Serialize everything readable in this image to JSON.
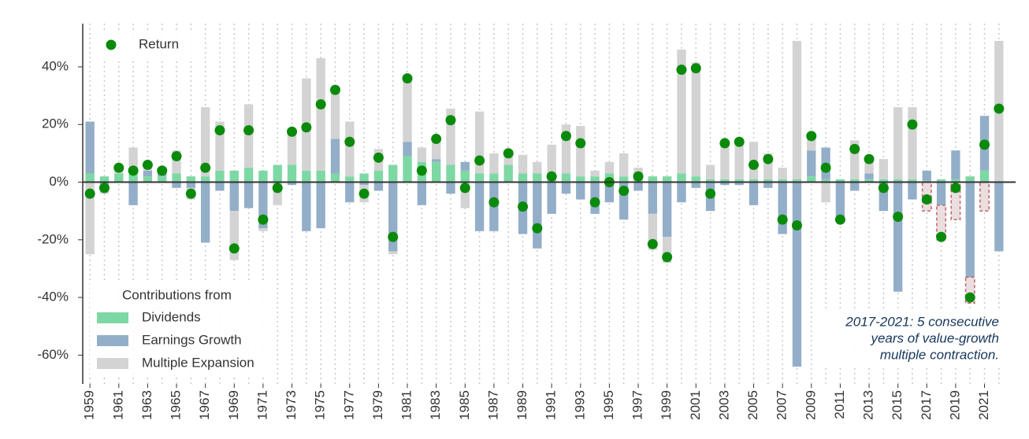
{
  "chart_data": {
    "type": "bar",
    "legend_title": "Contributions from",
    "annotation": [
      "2017-2021: 5 consecutive",
      "years of value-growth",
      "multiple contraction."
    ],
    "x": [
      1959,
      1960,
      1961,
      1962,
      1963,
      1964,
      1965,
      1966,
      1967,
      1968,
      1969,
      1970,
      1971,
      1972,
      1973,
      1974,
      1975,
      1976,
      1977,
      1978,
      1979,
      1980,
      1981,
      1982,
      1983,
      1984,
      1985,
      1986,
      1987,
      1988,
      1989,
      1990,
      1991,
      1992,
      1993,
      1994,
      1995,
      1996,
      1997,
      1998,
      1999,
      2000,
      2001,
      2002,
      2003,
      2004,
      2005,
      2006,
      2007,
      2008,
      2009,
      2010,
      2011,
      2012,
      2013,
      2014,
      2015,
      2016,
      2017,
      2018,
      2019,
      2020,
      2021,
      2022
    ],
    "xlim": [
      1958.5,
      2022.5
    ],
    "xticks": [
      1959,
      1961,
      1963,
      1965,
      1967,
      1969,
      1971,
      1973,
      1975,
      1977,
      1979,
      1981,
      1983,
      1985,
      1987,
      1989,
      1991,
      1993,
      1995,
      1997,
      1999,
      2001,
      2003,
      2005,
      2007,
      2009,
      2011,
      2013,
      2015,
      2017,
      2019,
      2021
    ],
    "ylim": [
      -70,
      55
    ],
    "yticks": [
      {
        "value": -60,
        "label": "-60%"
      },
      {
        "value": -40,
        "label": "-40%"
      },
      {
        "value": -20,
        "label": "-20%"
      },
      {
        "value": 0,
        "label": "0%"
      },
      {
        "value": 20,
        "label": "20%"
      },
      {
        "value": 40,
        "label": "40%"
      }
    ],
    "grid": true,
    "series": [
      {
        "name": "Dividends",
        "color": "#7dd8a4",
        "values": [
          3,
          2,
          3,
          3,
          2,
          2,
          3,
          2,
          2,
          4,
          4,
          5,
          4,
          6,
          6,
          4,
          4,
          3,
          2,
          3,
          4,
          6,
          9,
          7,
          7,
          6,
          4,
          3,
          3,
          6,
          3,
          3,
          2,
          3,
          2,
          2,
          3,
          2,
          1,
          2,
          2,
          3,
          2,
          1,
          1,
          1,
          1,
          1,
          1,
          1,
          2,
          1,
          1,
          1,
          1,
          1,
          1,
          1,
          0.5,
          1,
          1,
          2,
          4,
          0
        ]
      },
      {
        "name": "Earnings Growth",
        "color": "#93aec8",
        "values": [
          18,
          -1,
          0,
          -8,
          2,
          1,
          -2,
          -2,
          -21,
          -3,
          -10,
          -9,
          -16,
          0,
          -1,
          -17,
          -16,
          12,
          -7,
          -1,
          -3,
          -24,
          5,
          -8,
          1,
          -4,
          3,
          -17,
          -17,
          0,
          -18,
          -23,
          -11,
          -4,
          -6,
          -11,
          -7,
          -13,
          -3,
          -11,
          -19,
          -7,
          -2,
          -10,
          -1,
          -1,
          -8,
          -2,
          -18,
          -64,
          9,
          11,
          -12,
          -3,
          2,
          -10,
          -38,
          -6,
          3.5,
          -8,
          10,
          -33,
          19,
          -24
        ]
      },
      {
        "name": "Multiple Expansion",
        "color": "#d3d3d3",
        "highlight_range": [
          2017,
          2021
        ],
        "highlight_color": "#c0646e",
        "values": [
          -25,
          -3,
          2,
          9,
          2,
          1,
          8,
          -4,
          24,
          17,
          -17,
          22,
          -1,
          -8,
          12.5,
          32,
          39,
          17,
          19,
          -6,
          7.5,
          -1,
          22,
          5,
          7,
          19.5,
          -9,
          21.5,
          7,
          4,
          6.5,
          4,
          11,
          17,
          17.5,
          2,
          4,
          8,
          4,
          -12.5,
          -9,
          43,
          39.5,
          5,
          13.5,
          14,
          13,
          9,
          4,
          48,
          5,
          -7,
          -2,
          13.5,
          5,
          7,
          25,
          25,
          -10,
          -12,
          -13,
          -9,
          -10,
          49
        ]
      },
      {
        "name": "Return",
        "type": "scatter",
        "color": "#0a8a0a",
        "values": [
          -4,
          -2,
          5,
          4,
          6,
          4,
          9,
          -4,
          5,
          18,
          -23,
          18,
          -13,
          -2,
          17.5,
          19,
          27,
          32,
          14,
          -4,
          8.5,
          -19,
          36,
          4,
          15,
          21.5,
          -2,
          7.5,
          -7,
          10,
          -8.5,
          -16,
          2,
          16,
          13.5,
          -7,
          0,
          -3,
          2,
          -21.5,
          -26,
          39,
          39.5,
          -4,
          13.5,
          14,
          6,
          8,
          -13,
          -15,
          16,
          5,
          -13,
          11.5,
          8,
          -2,
          -12,
          20,
          -6,
          -19,
          -2,
          -40,
          13,
          25.5
        ]
      }
    ]
  }
}
